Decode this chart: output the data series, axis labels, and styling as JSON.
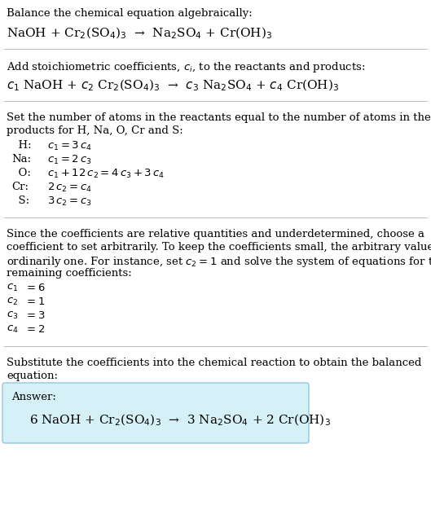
{
  "bg_color": "#ffffff",
  "text_color": "#000000",
  "answer_box_color": "#d6f0f8",
  "answer_box_edge": "#90c8e0",
  "line_color": "#bbbbbb",
  "section1_title": "Balance the chemical equation algebraically:",
  "section1_eq": "NaOH + Cr$_2$(SO$_4$)$_3$  →  Na$_2$SO$_4$ + Cr(OH)$_3$",
  "section2_title": "Add stoichiometric coefficients, $c_i$, to the reactants and products:",
  "section2_eq": "$c_1$ NaOH + $c_2$ Cr$_2$(SO$_4$)$_3$  →  $c_3$ Na$_2$SO$_4$ + $c_4$ Cr(OH)$_3$",
  "section3_title_line1": "Set the number of atoms in the reactants equal to the number of atoms in the",
  "section3_title_line2": "products for H, Na, O, Cr and S:",
  "section3_eq_labels": [
    "  H:",
    "Na:",
    "  O:",
    "Cr:",
    "  S:"
  ],
  "section3_eq_math": [
    "$c_1 = 3\\,c_4$",
    "$c_1 = 2\\,c_3$",
    "$c_1 + 12\\,c_2 = 4\\,c_3 + 3\\,c_4$",
    "$2\\,c_2 = c_4$",
    "$3\\,c_2 = c_3$"
  ],
  "section4_title_lines": [
    "Since the coefficients are relative quantities and underdetermined, choose a",
    "coefficient to set arbitrarily. To keep the coefficients small, the arbitrary value is",
    "ordinarily one. For instance, set $c_2 = 1$ and solve the system of equations for the",
    "remaining coefficients:"
  ],
  "section4_values_labels": [
    "$c_1$",
    "$c_2$",
    "$c_3$",
    "$c_4$"
  ],
  "section4_values_nums": [
    "$= 6$",
    "$= 1$",
    "$= 3$",
    "$= 2$"
  ],
  "section5_title_line1": "Substitute the coefficients into the chemical reaction to obtain the balanced",
  "section5_title_line2": "equation:",
  "answer_label": "Answer:",
  "answer_eq": "6 NaOH + Cr$_2$(SO$_4$)$_3$  →  3 Na$_2$SO$_4$ + 2 Cr(OH)$_3$",
  "main_fontsize": 9.5,
  "eq_fontsize": 11.0,
  "label_fontsize": 9.5
}
